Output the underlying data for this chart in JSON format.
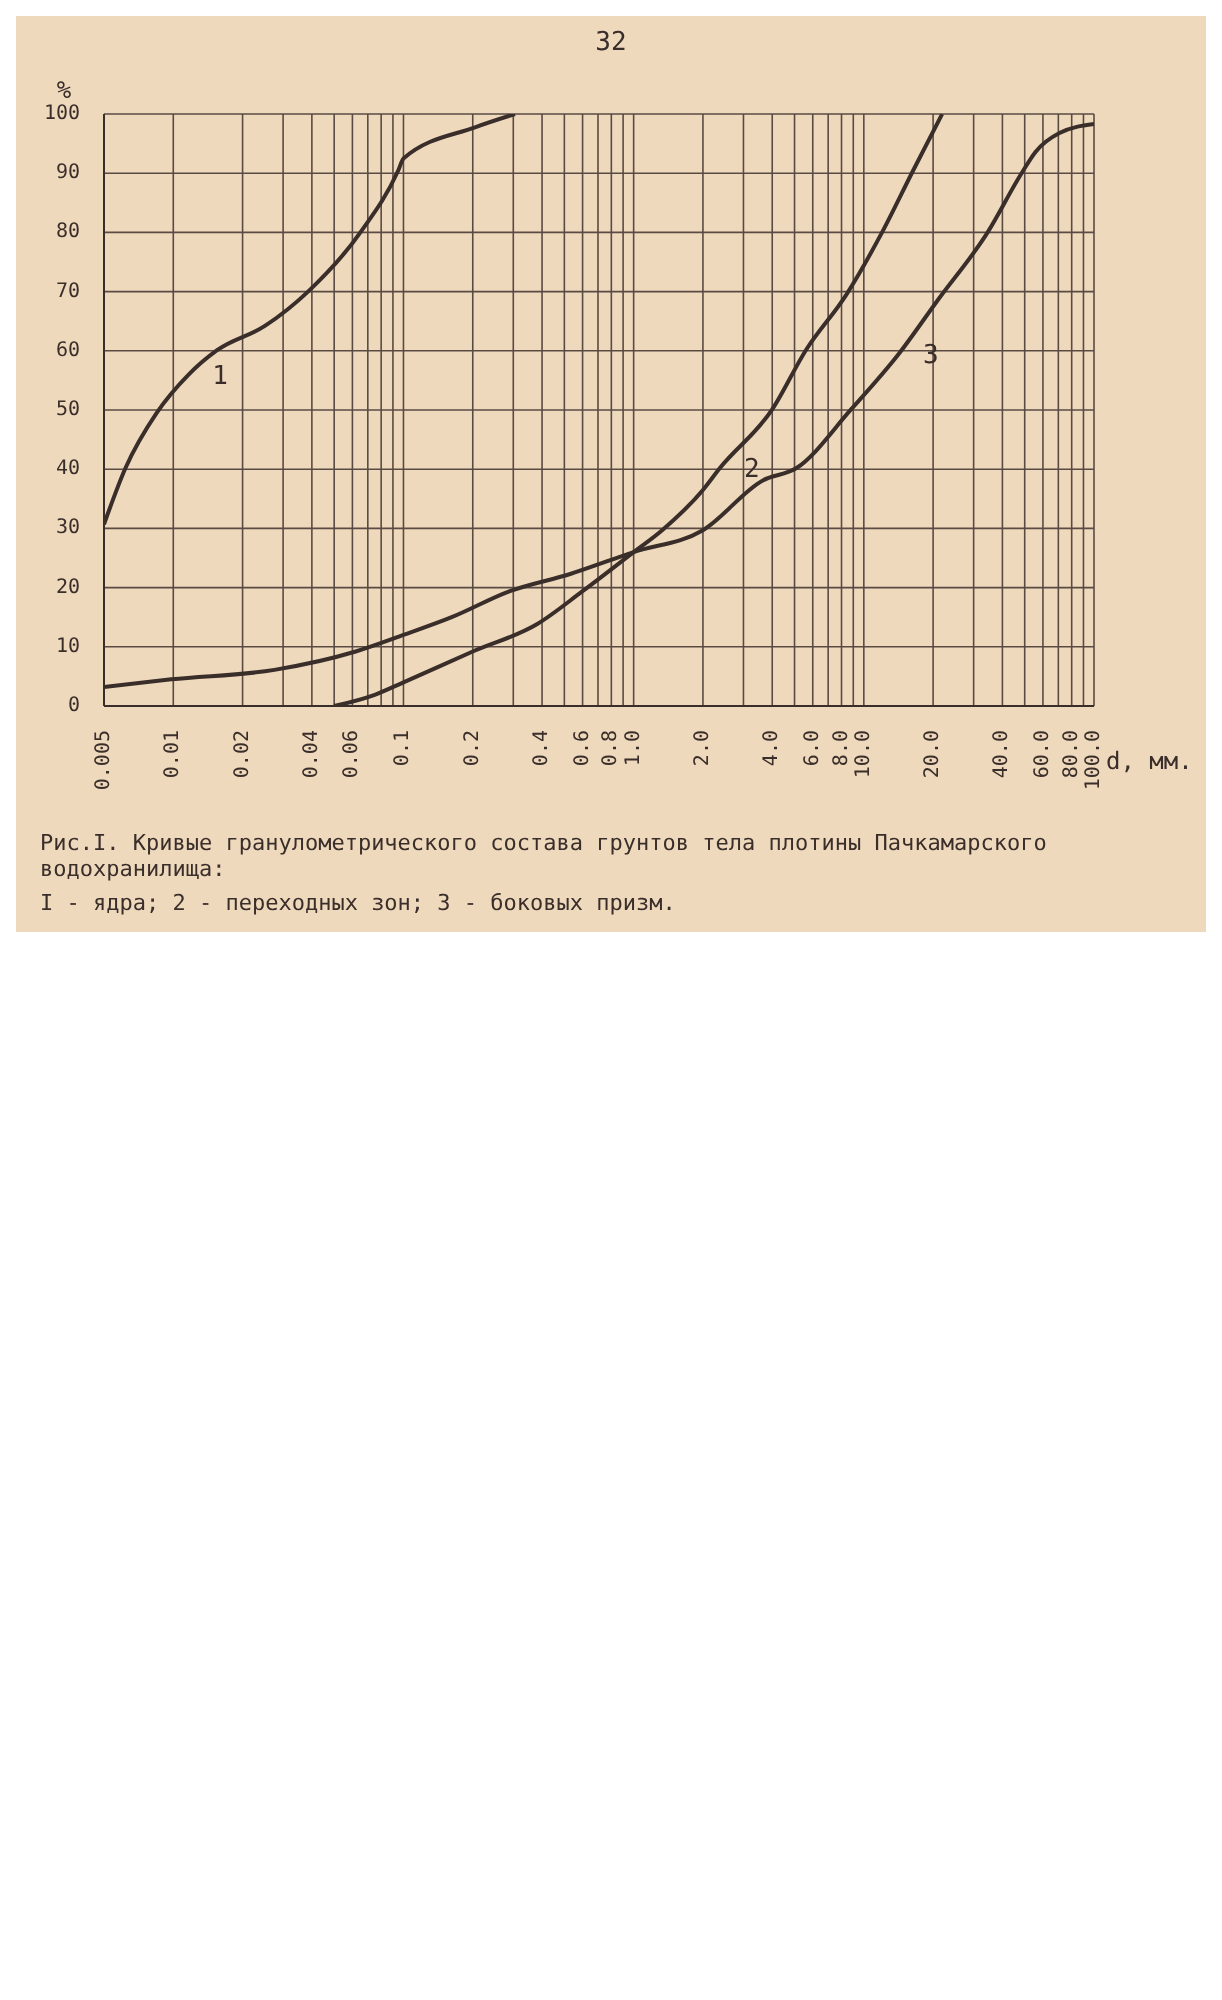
{
  "chart_data": {
    "type": "line",
    "xlabel": "d, мм.",
    "ylabel": "%",
    "log": "x",
    "grid": true,
    "marker": "none",
    "line_style": "solid",
    "xlim": [
      0.005,
      100
    ],
    "ylim": [
      0,
      100
    ],
    "xticks": [
      0.005,
      0.01,
      0.02,
      {
        "value": 0.03,
        "label": null
      },
      0.04,
      {
        "value": 0.05,
        "label": null
      },
      0.06,
      {
        "value": 0.07,
        "label": null
      },
      {
        "value": 0.08,
        "label": null
      },
      {
        "value": 0.09,
        "label": null
      },
      0.1,
      0.2,
      {
        "value": 0.3,
        "label": null
      },
      0.4,
      {
        "value": 0.5,
        "label": null
      },
      0.6,
      {
        "value": 0.7,
        "label": null
      },
      0.8,
      {
        "value": 0.9,
        "label": null
      },
      {
        "value": 1,
        "label": "1.0"
      },
      {
        "value": 2,
        "label": "2.0"
      },
      {
        "value": 3,
        "label": null
      },
      {
        "value": 4,
        "label": "4.0"
      },
      {
        "value": 5,
        "label": null
      },
      {
        "value": 6,
        "label": "6.0"
      },
      {
        "value": 7,
        "label": null
      },
      {
        "value": 8,
        "label": "8.0"
      },
      {
        "value": 9,
        "label": null
      },
      {
        "value": 10,
        "label": "10.0"
      },
      {
        "value": 20,
        "label": "20.0"
      },
      {
        "value": 30,
        "label": null
      },
      {
        "value": 40,
        "label": "40.0"
      },
      {
        "value": 50,
        "label": null
      },
      {
        "value": 60,
        "label": "60.0"
      },
      {
        "value": 70,
        "label": null
      },
      {
        "value": 80,
        "label": "80.0"
      },
      {
        "value": 90,
        "label": null
      },
      {
        "value": 100,
        "label": "100.0"
      }
    ],
    "yticks": [
      0,
      10,
      20,
      30,
      40,
      50,
      60,
      70,
      80,
      90,
      100
    ],
    "series": [
      {
        "color": "#3a2e2a",
        "x": [
          0.005,
          0.0062,
          0.0085,
          0.0116,
          0.0155,
          0.025,
          0.0385,
          0.065,
          0.095,
          0.1,
          0.206,
          0.305
        ],
        "values": [
          30.7,
          40.2,
          49.6,
          55.9,
          60.1,
          64.2,
          70,
          80,
          90.5,
          92.5,
          97.8,
          100
        ]
      },
      {
        "color": "#3a2e2a",
        "x": [
          0.05,
          0.075,
          0.1,
          0.2,
          0.383,
          0.6,
          1,
          1.33,
          2,
          2.37,
          4,
          5.6,
          8.4,
          12,
          16.4,
          21.9
        ],
        "values": [
          0,
          1.9,
          4,
          9.2,
          13.9,
          19.4,
          26,
          29.7,
          36.5,
          40.2,
          50.1,
          60.1,
          69.5,
          80,
          90.5,
          100
        ]
      },
      {
        "color": "#3a2e2a",
        "x": [
          0.005,
          0.0098,
          0.0275,
          0.062,
          0.1,
          0.162,
          0.29,
          0.53,
          1,
          2,
          3.64,
          5.1,
          8.8,
          14.2,
          20.9,
          34.5,
          48.3,
          55.7,
          70.8,
          100
        ],
        "values": [
          3.2,
          4.5,
          6.1,
          9.2,
          12,
          15,
          19.4,
          22.3,
          26,
          29.7,
          38.1,
          40.2,
          50.1,
          59.5,
          68.5,
          80,
          89.9,
          93.6,
          96.8,
          98.3
        ]
      }
    ],
    "annotations": [
      "32",
      {
        "text": "1",
        "x": 0.0116,
        "y": 55.9
      },
      {
        "text": "2",
        "x": 2.37,
        "y": 40.2
      },
      {
        "text": "3",
        "x": 14.2,
        "y": 59.5
      },
      "Рис.I. Кривые гранулометрического состава грунтов тела плотины Пачкамарского водохранилища:",
      "I - ядра; 2 - переходных зон; 3 - боковых призм."
    ]
  }
}
